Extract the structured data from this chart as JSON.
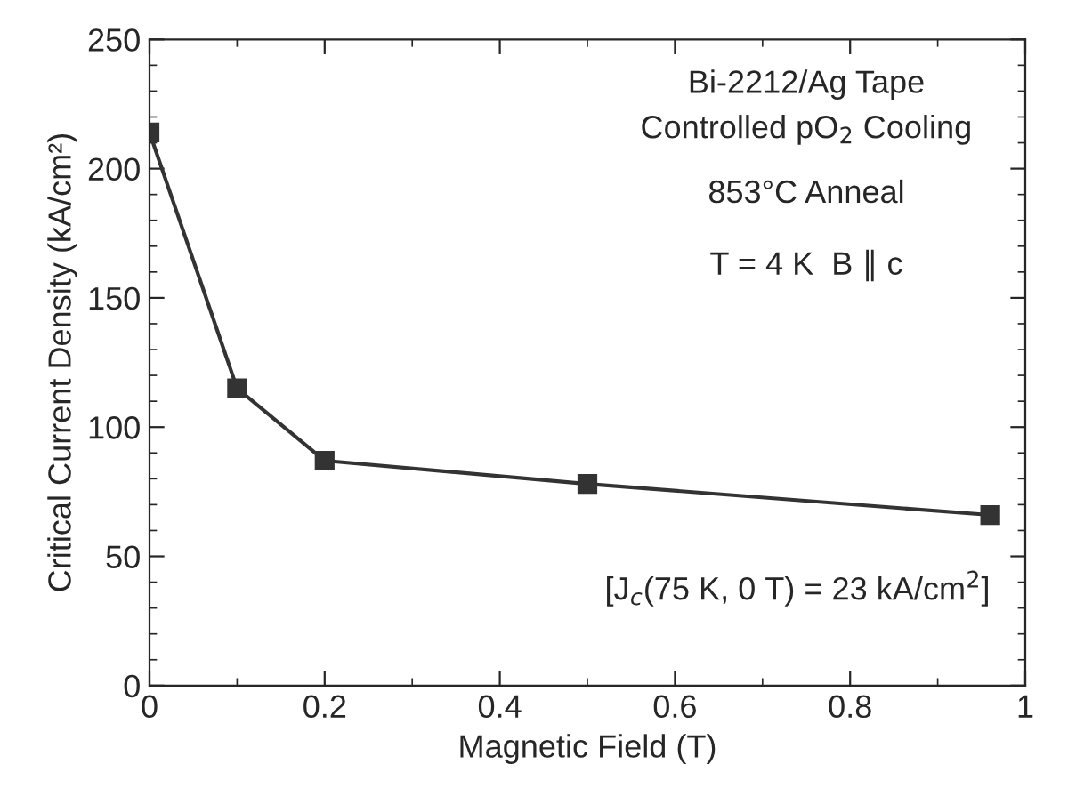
{
  "chart_data": {
    "type": "line",
    "xlabel": "Magnetic Field (T)",
    "ylabel": "Critical Current Density (kA/cm²)",
    "x": [
      0,
      0.1,
      0.2,
      0.5,
      0.96
    ],
    "series": [
      {
        "color": "#333333",
        "values": [
          214,
          115,
          87,
          78,
          66
        ]
      }
    ],
    "xlim": [
      0,
      1
    ],
    "xticks": [
      0,
      0.2,
      0.4,
      0.6,
      0.8,
      1
    ],
    "ylim": [
      0,
      250
    ],
    "yticks": [
      0,
      50,
      100,
      150,
      200,
      250
    ],
    "marker": "square",
    "line_style": "solid",
    "grid": false,
    "legend": false,
    "annotations": [
      "Bi-2212/Ag Tape",
      "Controlled pO$_{2}$ Cooling",
      "853°C Anneal",
      "T = 4 K  B ∥ c",
      "[J$_{c}$(75 K, 0 T) = 23 kA/cm$^{2}$]"
    ]
  }
}
